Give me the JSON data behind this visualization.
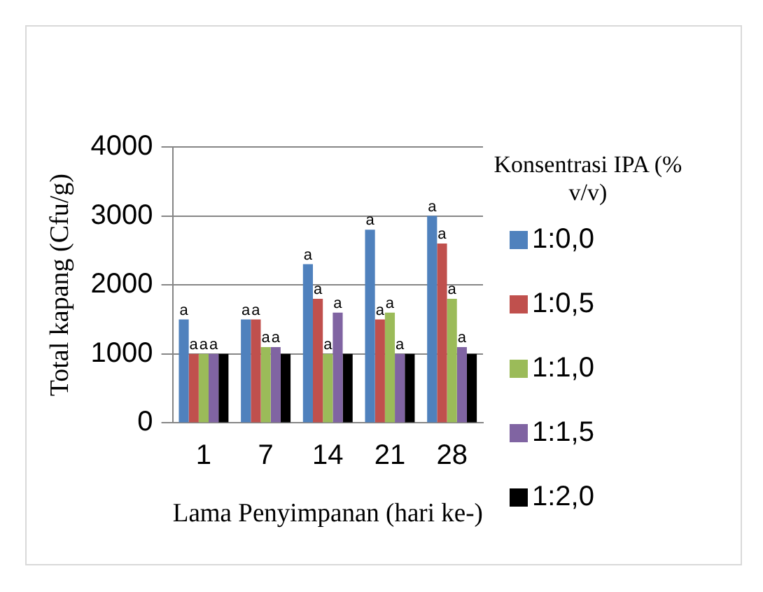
{
  "chart_data": {
    "type": "bar",
    "xlabel": "Lama Penyimpanan (hari ke-)",
    "ylabel": "Total kapang (Cfu/g)",
    "legend_title": "Konsentrasi IPA (% v/v)",
    "categories": [
      "1",
      "7",
      "14",
      "21",
      "28"
    ],
    "series": [
      {
        "name": "1:0,0",
        "color": "#4f81bd",
        "values": [
          1500,
          1500,
          2300,
          2800,
          3000
        ],
        "value_labels": [
          "a",
          "a",
          "a",
          "a",
          "a"
        ]
      },
      {
        "name": "1:0,5",
        "color": "#c0504d",
        "values": [
          1000,
          1500,
          1800,
          1500,
          2600
        ],
        "value_labels": [
          "a",
          "a",
          "a",
          "a",
          "a"
        ]
      },
      {
        "name": "1:1,0",
        "color": "#9bbb59",
        "values": [
          1000,
          1100,
          1000,
          1600,
          1800
        ],
        "value_labels": [
          "a",
          "a",
          "a",
          "a",
          "a"
        ]
      },
      {
        "name": "1:1,5",
        "color": "#8064a2",
        "values": [
          1000,
          1100,
          1600,
          1000,
          1100
        ],
        "value_labels": [
          "a",
          "a",
          "a",
          "a",
          "a"
        ]
      },
      {
        "name": "1:2,0",
        "color": "#000000",
        "values": [
          1000,
          1000,
          1000,
          1000,
          1000
        ]
      }
    ],
    "ylim": [
      0,
      4000
    ],
    "yticks": [
      0,
      1000,
      2000,
      3000,
      4000
    ],
    "grid": "y",
    "legend": "right"
  }
}
